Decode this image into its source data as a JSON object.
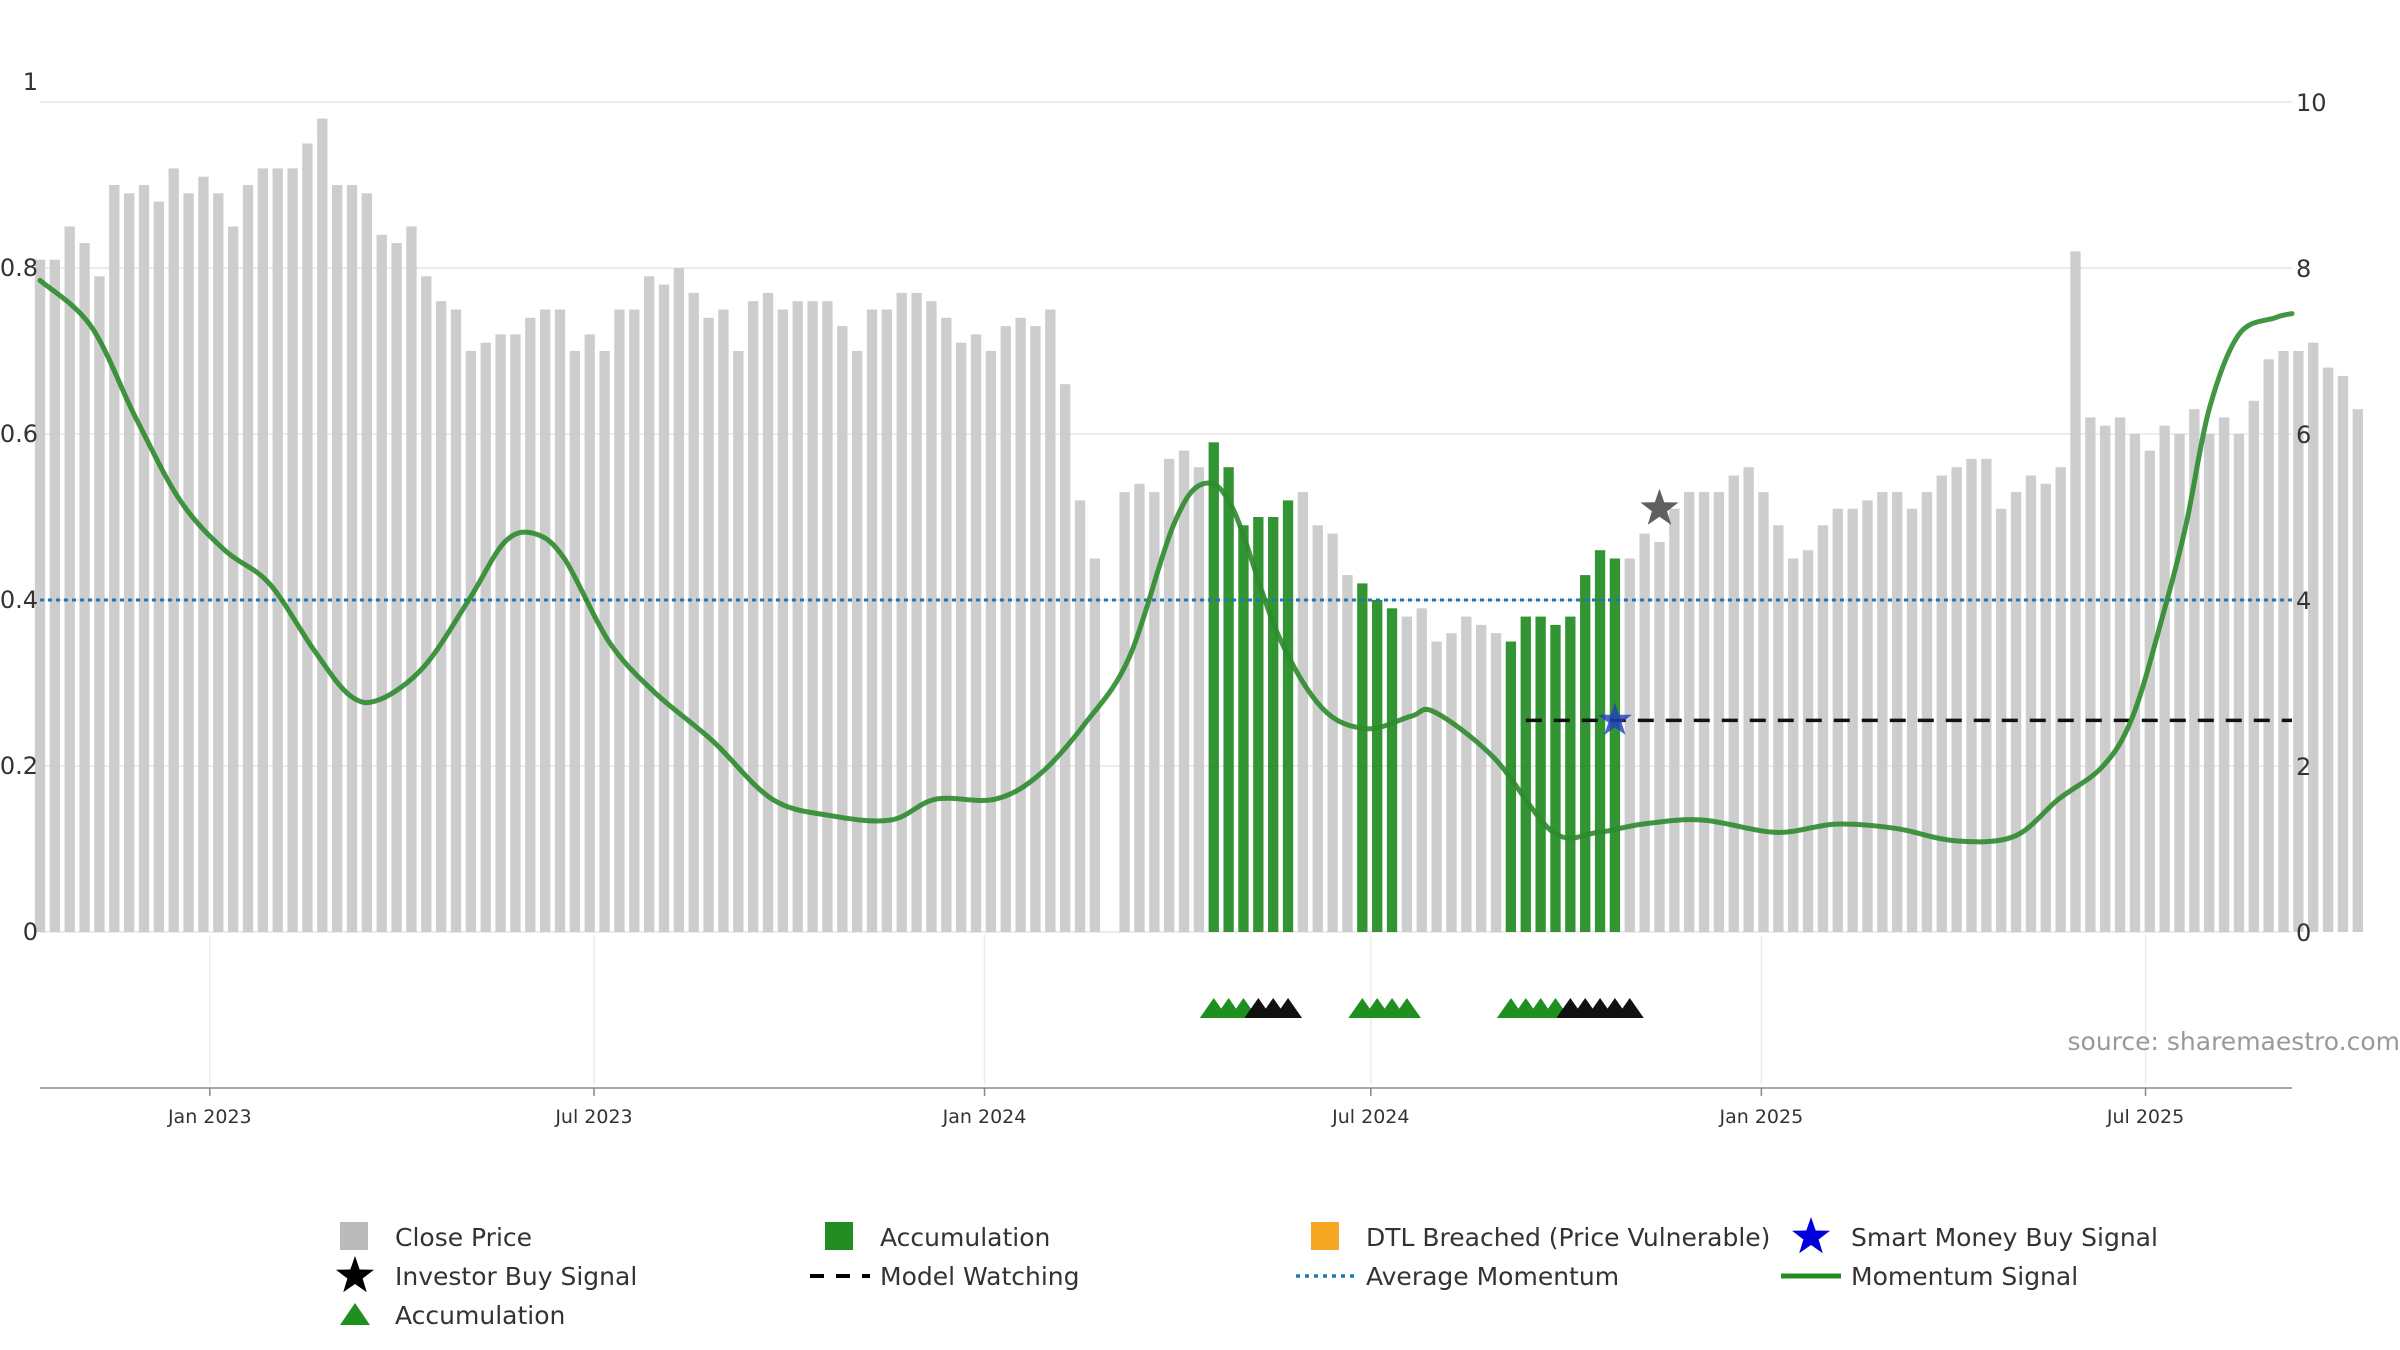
{
  "chart_data": {
    "type": "bar",
    "title": "",
    "source": "source: sharemaestro.com",
    "left_axis": {
      "ticks": [
        0,
        0.2,
        0.4,
        0.6,
        0.8,
        1
      ],
      "tick_labels": [
        "0",
        "0.2",
        "0.4",
        "0.6",
        "0.8",
        "1"
      ],
      "ylim": [
        0,
        1
      ]
    },
    "right_axis": {
      "ticks": [
        0,
        2,
        4,
        6,
        8,
        10
      ],
      "tick_labels": [
        "0",
        "2",
        "4",
        "6",
        "8",
        "10"
      ],
      "ylim": [
        0,
        10
      ]
    },
    "x_axis": {
      "type": "date",
      "range": [
        "2022-10-13",
        "2025-09-08"
      ],
      "ticks": [
        "2023-01-01",
        "2023-07-01",
        "2024-01-01",
        "2024-07-01",
        "2025-01-01",
        "2025-07-01"
      ],
      "tick_labels": [
        "Jan 2023",
        "Jul 2023",
        "Jan 2024",
        "Jul 2024",
        "Jan 2025",
        "Jul 2025"
      ]
    },
    "grid": true,
    "bars": {
      "series_name": "Close Price",
      "axis": "right",
      "start_date": "2022-10-13",
      "interval_days": 7,
      "values": [
        8.1,
        8.1,
        8.5,
        8.3,
        7.9,
        9.0,
        8.9,
        9.0,
        8.8,
        9.2,
        8.9,
        9.1,
        8.9,
        8.5,
        9.0,
        9.2,
        9.2,
        9.2,
        9.5,
        9.8,
        9.0,
        9.0,
        8.9,
        8.4,
        8.3,
        8.5,
        7.9,
        7.6,
        7.5,
        7.0,
        7.1,
        7.2,
        7.2,
        7.4,
        7.5,
        7.5,
        7.0,
        7.2,
        7.0,
        7.5,
        7.5,
        7.9,
        7.8,
        8.0,
        7.7,
        7.4,
        7.5,
        7.0,
        7.6,
        7.7,
        7.5,
        7.6,
        7.6,
        7.6,
        7.3,
        7.0,
        7.5,
        7.5,
        7.7,
        7.7,
        7.6,
        7.4,
        7.1,
        7.2,
        7.0,
        7.3,
        7.4,
        7.3,
        7.5,
        6.6,
        5.2,
        4.5,
        0.0,
        5.3,
        5.4,
        5.3,
        5.7,
        5.8,
        5.6,
        5.9,
        5.6,
        4.9,
        5.0,
        5.0,
        5.2,
        5.3,
        4.9,
        4.8,
        4.3,
        4.2,
        4.0,
        3.9,
        3.8,
        3.9,
        3.5,
        3.6,
        3.8,
        3.7,
        3.6,
        3.5,
        3.8,
        3.8,
        3.7,
        3.8,
        4.3,
        4.6,
        4.5,
        4.5,
        4.8,
        4.7,
        5.1,
        5.3,
        5.3,
        5.3,
        5.5,
        5.6,
        5.3,
        4.9,
        4.5,
        4.6,
        4.9,
        5.1,
        5.1,
        5.2,
        5.3,
        5.3,
        5.1,
        5.3,
        5.5,
        5.6,
        5.7,
        5.7,
        5.1,
        5.3,
        5.5,
        5.4,
        5.6,
        8.2,
        6.2,
        6.1,
        6.2,
        6.0,
        5.8,
        6.1,
        6.0,
        6.3,
        6.0,
        6.2,
        6.0,
        6.4,
        6.9,
        7.0,
        7.0,
        7.1,
        6.8,
        6.7,
        6.3
      ],
      "accumulation_index_ranges": [
        [
          79,
          84
        ],
        [
          89,
          91
        ],
        [
          99,
          106
        ]
      ],
      "accumulation_color": "#228B22",
      "price_color": "#c8c8c8"
    },
    "momentum": {
      "series_name": "Momentum Signal",
      "axis": "left",
      "color": "#2e8b2e",
      "points": [
        [
          "2022-10-13",
          0.785
        ],
        [
          "2022-11-06",
          0.73
        ],
        [
          "2022-11-27",
          0.62
        ],
        [
          "2022-12-18",
          0.52
        ],
        [
          "2023-01-08",
          0.46
        ],
        [
          "2023-01-29",
          0.42
        ],
        [
          "2023-02-19",
          0.34
        ],
        [
          "2023-03-08",
          0.285
        ],
        [
          "2023-03-22",
          0.28
        ],
        [
          "2023-04-12",
          0.32
        ],
        [
          "2023-05-03",
          0.4
        ],
        [
          "2023-05-20",
          0.47
        ],
        [
          "2023-06-03",
          0.48
        ],
        [
          "2023-06-17",
          0.45
        ],
        [
          "2023-07-08",
          0.35
        ],
        [
          "2023-07-29",
          0.29
        ],
        [
          "2023-08-26",
          0.23
        ],
        [
          "2023-09-23",
          0.16
        ],
        [
          "2023-10-21",
          0.14
        ],
        [
          "2023-11-18",
          0.135
        ],
        [
          "2023-12-09",
          0.16
        ],
        [
          "2024-01-06",
          0.16
        ],
        [
          "2024-01-27",
          0.19
        ],
        [
          "2024-02-17",
          0.25
        ],
        [
          "2024-03-09",
          0.33
        ],
        [
          "2024-03-30",
          0.49
        ],
        [
          "2024-04-13",
          0.54
        ],
        [
          "2024-04-27",
          0.51
        ],
        [
          "2024-05-18",
          0.36
        ],
        [
          "2024-06-08",
          0.27
        ],
        [
          "2024-06-29",
          0.245
        ],
        [
          "2024-07-20",
          0.26
        ],
        [
          "2024-07-31",
          0.265
        ],
        [
          "2024-08-28",
          0.21
        ],
        [
          "2024-09-25",
          0.12
        ],
        [
          "2024-10-16",
          0.12
        ],
        [
          "2024-11-06",
          0.13
        ],
        [
          "2024-12-04",
          0.135
        ],
        [
          "2025-01-08",
          0.12
        ],
        [
          "2025-02-05",
          0.13
        ],
        [
          "2025-03-05",
          0.125
        ],
        [
          "2025-04-02",
          0.11
        ],
        [
          "2025-04-30",
          0.115
        ],
        [
          "2025-05-21",
          0.16
        ],
        [
          "2025-06-11",
          0.2
        ],
        [
          "2025-06-25",
          0.26
        ],
        [
          "2025-07-09",
          0.38
        ],
        [
          "2025-07-20",
          0.49
        ],
        [
          "2025-07-31",
          0.63
        ],
        [
          "2025-08-14",
          0.72
        ],
        [
          "2025-08-31",
          0.74
        ],
        [
          "2025-09-08",
          0.745
        ]
      ],
      "note_points_are_stylised": "",
      "_": ""
    },
    "average_momentum": {
      "series_name": "Average Momentum",
      "axis": "left",
      "value": 0.4,
      "color": "#1f77b4"
    },
    "model_watching": {
      "series_name": "Model Watching",
      "axis": "right",
      "value": 2.55,
      "start_index": 100,
      "color": "#111111"
    },
    "investor_buy_signal": {
      "series_name": "Investor Buy Signal",
      "index": 109,
      "value_left": 0.51,
      "color": "#444444"
    },
    "smart_money_buy_signal": {
      "series_name": "Smart Money Buy Signal",
      "index": 106,
      "value_right": 2.55,
      "color": "#1f3fbf"
    },
    "accumulation_markers": {
      "series_name": "Accumulation",
      "markers": [
        {
          "index": 79,
          "color": "#1f8f1f"
        },
        {
          "index": 80,
          "color": "#1f8f1f"
        },
        {
          "index": 81,
          "color": "#1f8f1f"
        },
        {
          "index": 82,
          "color": "#111111"
        },
        {
          "index": 83,
          "color": "#111111"
        },
        {
          "index": 84,
          "color": "#111111"
        },
        {
          "index": 89,
          "color": "#1f8f1f"
        },
        {
          "index": 90,
          "color": "#1f8f1f"
        },
        {
          "index": 91,
          "color": "#1f8f1f"
        },
        {
          "index": 92,
          "color": "#1f8f1f"
        },
        {
          "index": 99,
          "color": "#1f8f1f"
        },
        {
          "index": 100,
          "color": "#1f8f1f"
        },
        {
          "index": 101,
          "color": "#1f8f1f"
        },
        {
          "index": 102,
          "color": "#1f8f1f"
        },
        {
          "index": 103,
          "color": "#111111"
        },
        {
          "index": 104,
          "color": "#111111"
        },
        {
          "index": 105,
          "color": "#111111"
        },
        {
          "index": 106,
          "color": "#111111"
        },
        {
          "index": 107,
          "color": "#111111"
        }
      ]
    },
    "legend": {
      "placement": "bottom",
      "items": [
        {
          "label": "Close Price",
          "marker": "gray-square",
          "color": "#bbbbbb"
        },
        {
          "label": "Accumulation",
          "marker": "green-square",
          "color": "#228B22"
        },
        {
          "label": "DTL Breached (Price Vulnerable)",
          "marker": "orange-square",
          "color": "#f5a623"
        },
        {
          "label": "Smart Money Buy Signal",
          "marker": "blue-star",
          "color": "#0000dd"
        },
        {
          "label": "Investor Buy Signal",
          "marker": "black-star",
          "color": "#000000"
        },
        {
          "label": "Model Watching",
          "marker": "black-dash",
          "color": "#000000"
        },
        {
          "label": "Average Momentum",
          "marker": "blue-dotted",
          "color": "#1f77b4"
        },
        {
          "label": "Momentum Signal",
          "marker": "green-line",
          "color": "#228B22"
        },
        {
          "label": "Accumulation",
          "marker": "green-triangle",
          "color": "#1f8f1f"
        }
      ]
    }
  }
}
